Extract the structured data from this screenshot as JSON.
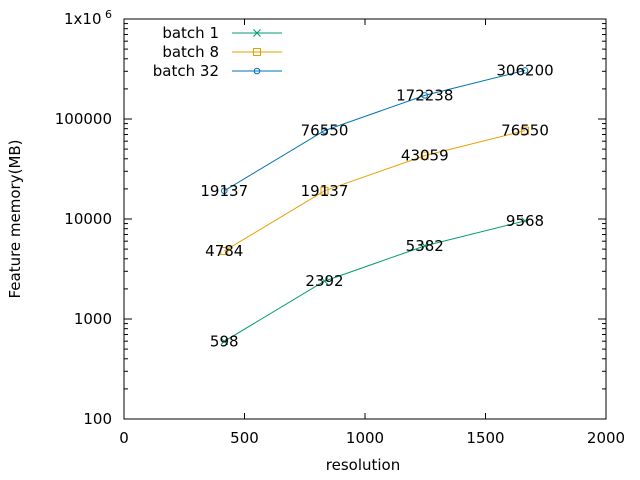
{
  "chart_data": {
    "type": "line",
    "xlabel": "resolution",
    "ylabel": "Feature memory(MB)",
    "xlim": [
      0,
      2000
    ],
    "ylim": [
      100,
      1000000
    ],
    "yscale": "log",
    "grid": false,
    "legend_position": "top-left",
    "x_ticks": [
      0,
      500,
      1000,
      1500,
      2000
    ],
    "y_ticks": [
      {
        "value": 100,
        "label": "100"
      },
      {
        "value": 1000,
        "label": "1000"
      },
      {
        "value": 10000,
        "label": "10000"
      },
      {
        "value": 100000,
        "label": "100000"
      },
      {
        "value": 1000000,
        "label": "1x10"
      }
    ],
    "y_top_label_exponent": "6",
    "series": [
      {
        "name": "batch 1",
        "color": "#009e73",
        "marker": "x",
        "x": [
          416,
          832,
          1248,
          1664
        ],
        "values": [
          598,
          2392,
          5382,
          9568
        ],
        "labels": [
          "598",
          "2392",
          "5382",
          "9568"
        ]
      },
      {
        "name": "batch 8",
        "color": "#e69f00",
        "marker": "square",
        "x": [
          416,
          832,
          1248,
          1664
        ],
        "values": [
          4784,
          19137,
          43059,
          76550
        ],
        "labels": [
          "4784",
          "19137",
          "43059",
          "76550"
        ]
      },
      {
        "name": "batch 32",
        "color": "#0072b2",
        "marker": "circle",
        "x": [
          416,
          832,
          1248,
          1664
        ],
        "values": [
          19137,
          76550,
          172238,
          306200
        ],
        "labels": [
          "19137",
          "76550",
          "172238",
          "306200"
        ]
      }
    ]
  }
}
